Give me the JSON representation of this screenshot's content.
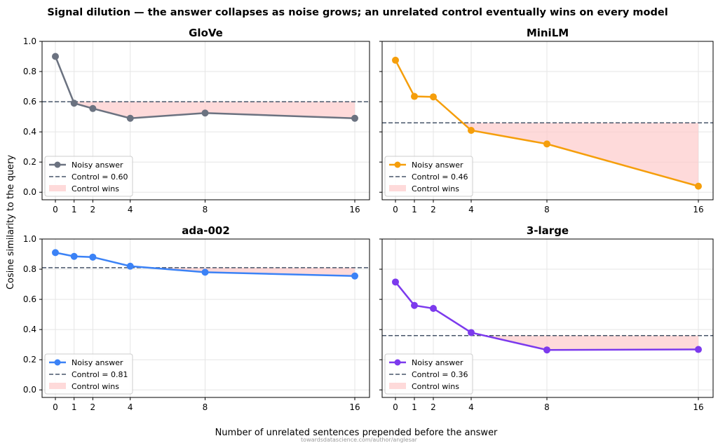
{
  "figure": {
    "title": "Signal dilution — the answer collapses as noise grows; an unrelated control eventually wins on every model",
    "xlabel": "Number of unrelated sentences prepended before the answer",
    "ylabel": "Cosine similarity to the query",
    "watermark": "towardsdatascience.com/author/anglesar"
  },
  "legend": {
    "series_label": "Noisy answer",
    "region_label": "Control wins"
  },
  "chart_data": [
    {
      "type": "line",
      "title": "GloVe",
      "x": [
        0,
        1,
        2,
        4,
        8,
        16
      ],
      "series": [
        {
          "name": "Noisy answer",
          "values": [
            0.9,
            0.59,
            0.555,
            0.49,
            0.525,
            0.49
          ],
          "color": "#6b7280"
        }
      ],
      "control": {
        "value": 0.6,
        "label": "Control = 0.60"
      },
      "ylim": [
        -0.05,
        1.0
      ],
      "xticks": [
        0,
        1,
        2,
        4,
        8,
        16
      ],
      "yticks": [
        "0.0",
        "0.2",
        "0.4",
        "0.6",
        "0.8",
        "1.0"
      ],
      "grid": true,
      "legend_position": "lower-left"
    },
    {
      "type": "line",
      "title": "MiniLM",
      "x": [
        0,
        1,
        2,
        4,
        8,
        16
      ],
      "series": [
        {
          "name": "Noisy answer",
          "values": [
            0.875,
            0.635,
            0.632,
            0.41,
            0.32,
            0.04
          ],
          "color": "#f59e0b"
        }
      ],
      "control": {
        "value": 0.46,
        "label": "Control = 0.46"
      },
      "ylim": [
        -0.05,
        1.0
      ],
      "xticks": [
        0,
        1,
        2,
        4,
        8,
        16
      ],
      "yticks": [
        "0.0",
        "0.2",
        "0.4",
        "0.6",
        "0.8",
        "1.0"
      ],
      "grid": true,
      "legend_position": "lower-left"
    },
    {
      "type": "line",
      "title": "ada-002",
      "x": [
        0,
        1,
        2,
        4,
        8,
        16
      ],
      "series": [
        {
          "name": "Noisy answer",
          "values": [
            0.91,
            0.885,
            0.88,
            0.82,
            0.78,
            0.755
          ],
          "color": "#3b82f6"
        }
      ],
      "control": {
        "value": 0.81,
        "label": "Control = 0.81"
      },
      "ylim": [
        -0.05,
        1.0
      ],
      "xticks": [
        0,
        1,
        2,
        4,
        8,
        16
      ],
      "yticks": [
        "0.0",
        "0.2",
        "0.4",
        "0.6",
        "0.8",
        "1.0"
      ],
      "grid": true,
      "legend_position": "lower-left"
    },
    {
      "type": "line",
      "title": "3-large",
      "x": [
        0,
        1,
        2,
        4,
        8,
        16
      ],
      "series": [
        {
          "name": "Noisy answer",
          "values": [
            0.715,
            0.56,
            0.54,
            0.38,
            0.265,
            0.268
          ],
          "color": "#7c3aed"
        }
      ],
      "control": {
        "value": 0.36,
        "label": "Control = 0.36"
      },
      "ylim": [
        -0.05,
        1.0
      ],
      "xticks": [
        0,
        1,
        2,
        4,
        8,
        16
      ],
      "yticks": [
        "0.0",
        "0.2",
        "0.4",
        "0.6",
        "0.8",
        "1.0"
      ],
      "grid": true,
      "legend_position": "lower-left"
    }
  ],
  "colors": {
    "control_line": "#475569",
    "region_fill": "#fecaca",
    "grid": "#e5e5e5"
  }
}
